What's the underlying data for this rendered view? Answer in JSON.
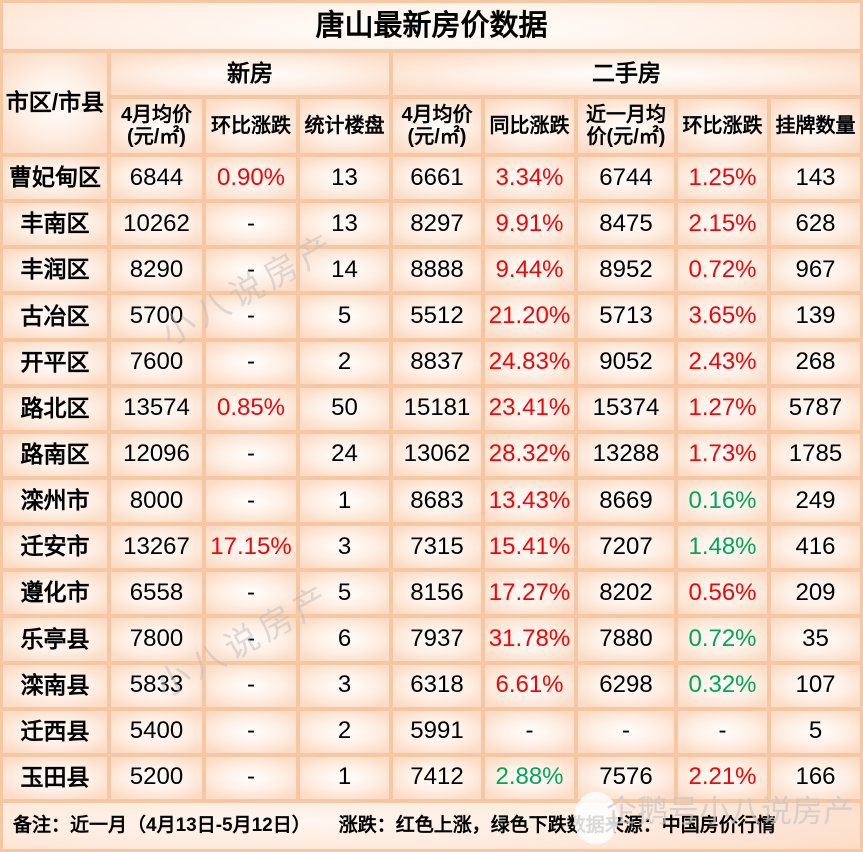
{
  "colors": {
    "red_up": "#ff0000",
    "green_down": "#00a65a",
    "text": "#000000",
    "grid_border": "#f7c7a2",
    "cell_fill": "#fcdcc6"
  },
  "chart_data": {
    "type": "table",
    "title": "唐山最新房价数据",
    "region_column_header": "市区/市县",
    "column_groups": [
      {
        "label": "新房",
        "span": 3
      },
      {
        "label": "二手房",
        "span": 5
      }
    ],
    "sub_columns": [
      "4月均价(元/㎡)",
      "环比涨跌",
      "统计楼盘",
      "4月均价(元/㎡)",
      "同比涨跌",
      "近一月均价(元/㎡)",
      "环比涨跌",
      "挂牌数量"
    ],
    "color_legend": {
      "r": "red = up",
      "g": "green = down",
      "k": "black = neutral"
    },
    "rows": [
      {
        "region": "曹妃甸区",
        "cells": [
          [
            "6844",
            "k"
          ],
          [
            "0.90%",
            "r"
          ],
          [
            "13",
            "k"
          ],
          [
            "6661",
            "k"
          ],
          [
            "3.34%",
            "r"
          ],
          [
            "6744",
            "k"
          ],
          [
            "1.25%",
            "r"
          ],
          [
            "143",
            "k"
          ]
        ]
      },
      {
        "region": "丰南区",
        "cells": [
          [
            "10262",
            "k"
          ],
          [
            "-",
            "k"
          ],
          [
            "13",
            "k"
          ],
          [
            "8297",
            "k"
          ],
          [
            "9.91%",
            "r"
          ],
          [
            "8475",
            "k"
          ],
          [
            "2.15%",
            "r"
          ],
          [
            "628",
            "k"
          ]
        ]
      },
      {
        "region": "丰润区",
        "cells": [
          [
            "8290",
            "k"
          ],
          [
            "-",
            "k"
          ],
          [
            "14",
            "k"
          ],
          [
            "8888",
            "k"
          ],
          [
            "9.44%",
            "r"
          ],
          [
            "8952",
            "k"
          ],
          [
            "0.72%",
            "r"
          ],
          [
            "967",
            "k"
          ]
        ]
      },
      {
        "region": "古冶区",
        "cells": [
          [
            "5700",
            "k"
          ],
          [
            "-",
            "k"
          ],
          [
            "5",
            "k"
          ],
          [
            "5512",
            "k"
          ],
          [
            "21.20%",
            "r"
          ],
          [
            "5713",
            "k"
          ],
          [
            "3.65%",
            "r"
          ],
          [
            "139",
            "k"
          ]
        ]
      },
      {
        "region": "开平区",
        "cells": [
          [
            "7600",
            "k"
          ],
          [
            "-",
            "k"
          ],
          [
            "2",
            "k"
          ],
          [
            "8837",
            "k"
          ],
          [
            "24.83%",
            "r"
          ],
          [
            "9052",
            "k"
          ],
          [
            "2.43%",
            "r"
          ],
          [
            "268",
            "k"
          ]
        ]
      },
      {
        "region": "路北区",
        "cells": [
          [
            "13574",
            "k"
          ],
          [
            "0.85%",
            "r"
          ],
          [
            "50",
            "k"
          ],
          [
            "15181",
            "k"
          ],
          [
            "23.41%",
            "r"
          ],
          [
            "15374",
            "k"
          ],
          [
            "1.27%",
            "r"
          ],
          [
            "5787",
            "k"
          ]
        ]
      },
      {
        "region": "路南区",
        "cells": [
          [
            "12096",
            "k"
          ],
          [
            "-",
            "k"
          ],
          [
            "24",
            "k"
          ],
          [
            "13062",
            "k"
          ],
          [
            "28.32%",
            "r"
          ],
          [
            "13288",
            "k"
          ],
          [
            "1.73%",
            "r"
          ],
          [
            "1785",
            "k"
          ]
        ]
      },
      {
        "region": "滦州市",
        "cells": [
          [
            "8000",
            "k"
          ],
          [
            "-",
            "k"
          ],
          [
            "1",
            "k"
          ],
          [
            "8683",
            "k"
          ],
          [
            "13.43%",
            "r"
          ],
          [
            "8669",
            "k"
          ],
          [
            "0.16%",
            "g"
          ],
          [
            "249",
            "k"
          ]
        ]
      },
      {
        "region": "迁安市",
        "cells": [
          [
            "13267",
            "k"
          ],
          [
            "17.15%",
            "r"
          ],
          [
            "3",
            "k"
          ],
          [
            "7315",
            "k"
          ],
          [
            "15.41%",
            "r"
          ],
          [
            "7207",
            "k"
          ],
          [
            "1.48%",
            "g"
          ],
          [
            "416",
            "k"
          ]
        ]
      },
      {
        "region": "遵化市",
        "cells": [
          [
            "6558",
            "k"
          ],
          [
            "-",
            "k"
          ],
          [
            "5",
            "k"
          ],
          [
            "8156",
            "k"
          ],
          [
            "17.27%",
            "r"
          ],
          [
            "8202",
            "k"
          ],
          [
            "0.56%",
            "r"
          ],
          [
            "209",
            "k"
          ]
        ]
      },
      {
        "region": "乐亭县",
        "cells": [
          [
            "7800",
            "k"
          ],
          [
            "-",
            "k"
          ],
          [
            "6",
            "k"
          ],
          [
            "7937",
            "k"
          ],
          [
            "31.78%",
            "r"
          ],
          [
            "7880",
            "k"
          ],
          [
            "0.72%",
            "g"
          ],
          [
            "35",
            "k"
          ]
        ]
      },
      {
        "region": "滦南县",
        "cells": [
          [
            "5833",
            "k"
          ],
          [
            "-",
            "k"
          ],
          [
            "3",
            "k"
          ],
          [
            "6318",
            "k"
          ],
          [
            "6.61%",
            "r"
          ],
          [
            "6298",
            "k"
          ],
          [
            "0.32%",
            "g"
          ],
          [
            "107",
            "k"
          ]
        ]
      },
      {
        "region": "迁西县",
        "cells": [
          [
            "5400",
            "k"
          ],
          [
            "-",
            "k"
          ],
          [
            "2",
            "k"
          ],
          [
            "5991",
            "k"
          ],
          [
            "-",
            "k"
          ],
          [
            "-",
            "k"
          ],
          [
            "-",
            "k"
          ],
          [
            "5",
            "k"
          ]
        ]
      },
      {
        "region": "玉田县",
        "cells": [
          [
            "5200",
            "k"
          ],
          [
            "-",
            "k"
          ],
          [
            "1",
            "k"
          ],
          [
            "7412",
            "k"
          ],
          [
            "2.88%",
            "g"
          ],
          [
            "7576",
            "k"
          ],
          [
            "2.21%",
            "r"
          ],
          [
            "166",
            "k"
          ]
        ]
      }
    ]
  },
  "footer": {
    "note": "备注：近一月（4月13日-5月12日）",
    "legend": "涨跌：红色上涨，绿色下跌",
    "source": "数据来源：中国房价行情"
  },
  "watermarks": {
    "body": "小八说房产",
    "footer": "企鹅号小八说房产"
  }
}
